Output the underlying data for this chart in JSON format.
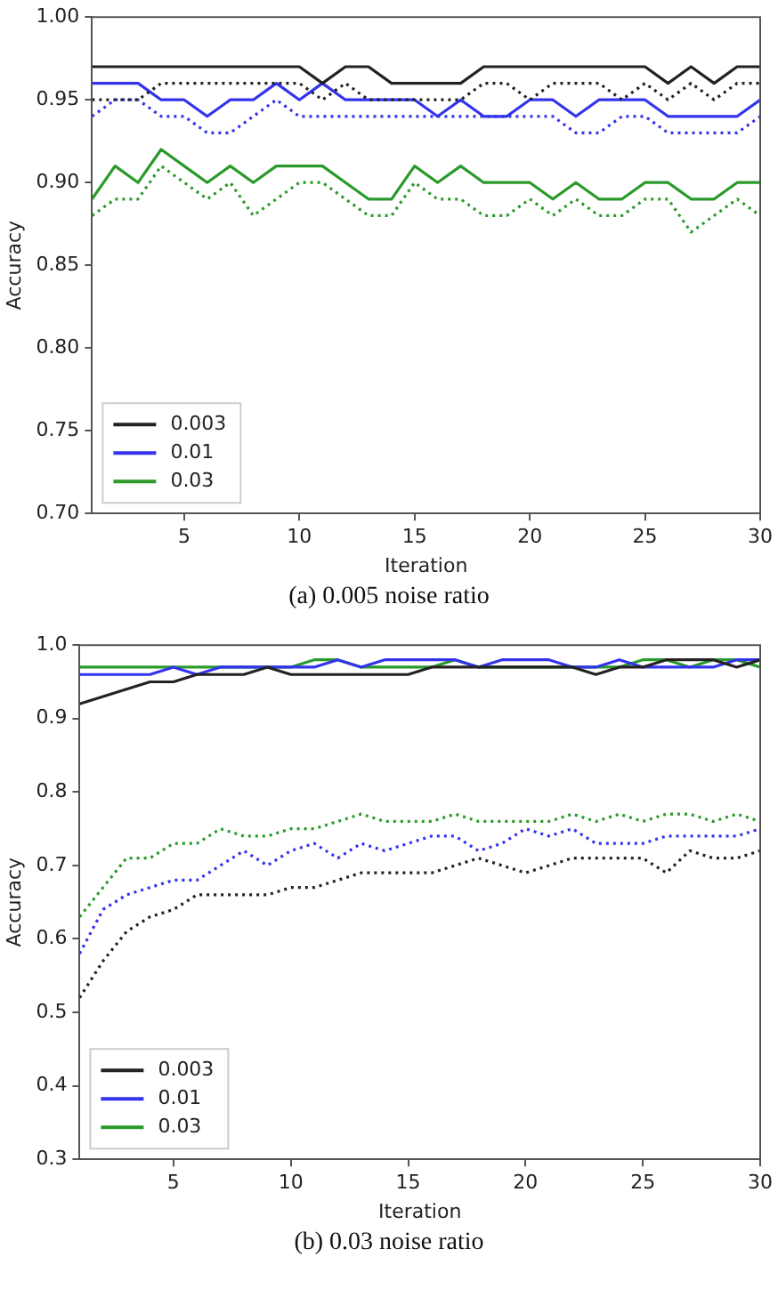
{
  "chart_data": [
    {
      "type": "line",
      "xlabel": "Iteration",
      "ylabel": "Accuracy",
      "annotations": [
        "(a) 0.005 noise ratio"
      ],
      "x": [
        1,
        2,
        3,
        4,
        5,
        6,
        7,
        8,
        9,
        10,
        11,
        12,
        13,
        14,
        15,
        16,
        17,
        18,
        19,
        20,
        21,
        22,
        23,
        24,
        25,
        26,
        27,
        28,
        29,
        30
      ],
      "xlim": [
        1,
        30
      ],
      "xticks": [
        5,
        10,
        15,
        20,
        25,
        30
      ],
      "ylim": [
        0.7,
        1.0
      ],
      "yticks": [
        {
          "value": 0.7,
          "label": "0.70"
        },
        {
          "value": 0.75,
          "label": "0.75"
        },
        {
          "value": 0.8,
          "label": "0.80"
        },
        {
          "value": 0.85,
          "label": "0.85"
        },
        {
          "value": 0.9,
          "label": "0.90"
        },
        {
          "value": 0.95,
          "label": "0.95"
        },
        {
          "value": 1.0,
          "label": "1.00"
        }
      ],
      "legend": "bottom left",
      "grid": false,
      "marker": "none",
      "series": [
        {
          "name": "0.003",
          "color": "#222222",
          "line_style": "solid",
          "values": [
            0.97,
            0.97,
            0.97,
            0.97,
            0.97,
            0.97,
            0.97,
            0.97,
            0.97,
            0.97,
            0.96,
            0.97,
            0.97,
            0.96,
            0.96,
            0.96,
            0.96,
            0.97,
            0.97,
            0.97,
            0.97,
            0.97,
            0.97,
            0.97,
            0.97,
            0.96,
            0.97,
            0.96,
            0.97,
            0.97
          ]
        },
        {
          "color": "#222222",
          "line_style": "dotted",
          "values": [
            0.95,
            0.95,
            0.95,
            0.96,
            0.96,
            0.96,
            0.96,
            0.96,
            0.96,
            0.96,
            0.95,
            0.96,
            0.95,
            0.95,
            0.95,
            0.95,
            0.95,
            0.96,
            0.96,
            0.95,
            0.96,
            0.96,
            0.96,
            0.95,
            0.96,
            0.95,
            0.96,
            0.95,
            0.96,
            0.96
          ]
        },
        {
          "name": "0.01",
          "color": "#3333ee",
          "line_style": "solid",
          "values": [
            0.96,
            0.96,
            0.96,
            0.95,
            0.95,
            0.94,
            0.95,
            0.95,
            0.96,
            0.95,
            0.96,
            0.95,
            0.95,
            0.95,
            0.95,
            0.94,
            0.95,
            0.94,
            0.94,
            0.95,
            0.95,
            0.94,
            0.95,
            0.95,
            0.95,
            0.94,
            0.94,
            0.94,
            0.94,
            0.95
          ]
        },
        {
          "color": "#3333ee",
          "line_style": "dotted",
          "values": [
            0.94,
            0.95,
            0.95,
            0.94,
            0.94,
            0.93,
            0.93,
            0.94,
            0.95,
            0.94,
            0.94,
            0.94,
            0.94,
            0.94,
            0.94,
            0.94,
            0.94,
            0.94,
            0.94,
            0.94,
            0.94,
            0.93,
            0.93,
            0.94,
            0.94,
            0.93,
            0.93,
            0.93,
            0.93,
            0.94
          ]
        },
        {
          "name": "0.03",
          "color": "#2a9a2a",
          "line_style": "solid",
          "values": [
            0.89,
            0.91,
            0.9,
            0.92,
            0.91,
            0.9,
            0.91,
            0.9,
            0.91,
            0.91,
            0.91,
            0.9,
            0.89,
            0.89,
            0.91,
            0.9,
            0.91,
            0.9,
            0.9,
            0.9,
            0.89,
            0.9,
            0.89,
            0.89,
            0.9,
            0.9,
            0.89,
            0.89,
            0.9,
            0.9
          ]
        },
        {
          "color": "#2a9a2a",
          "line_style": "dotted",
          "values": [
            0.88,
            0.89,
            0.89,
            0.91,
            0.9,
            0.89,
            0.9,
            0.88,
            0.89,
            0.9,
            0.9,
            0.89,
            0.88,
            0.88,
            0.9,
            0.89,
            0.89,
            0.88,
            0.88,
            0.89,
            0.88,
            0.89,
            0.88,
            0.88,
            0.89,
            0.89,
            0.87,
            0.88,
            0.89,
            0.88
          ]
        }
      ]
    },
    {
      "type": "line",
      "xlabel": "Iteration",
      "ylabel": "Accuracy",
      "annotations": [
        "(b) 0.03 noise ratio"
      ],
      "x": [
        1,
        2,
        3,
        4,
        5,
        6,
        7,
        8,
        9,
        10,
        11,
        12,
        13,
        14,
        15,
        16,
        17,
        18,
        19,
        20,
        21,
        22,
        23,
        24,
        25,
        26,
        27,
        28,
        29,
        30
      ],
      "xlim": [
        1,
        30
      ],
      "xticks": [
        5,
        10,
        15,
        20,
        25,
        30
      ],
      "ylim": [
        0.3,
        1.0
      ],
      "yticks": [
        0.3,
        0.4,
        0.5,
        0.6,
        0.7,
        0.8,
        0.9,
        {
          "value": 1.0,
          "label": "1.0"
        }
      ],
      "legend": "bottom left",
      "grid": false,
      "marker": "none",
      "series": [
        {
          "name": "0.003",
          "color": "#222222",
          "line_style": "solid",
          "values": [
            0.92,
            0.93,
            0.94,
            0.95,
            0.95,
            0.96,
            0.96,
            0.96,
            0.97,
            0.96,
            0.96,
            0.96,
            0.96,
            0.96,
            0.96,
            0.97,
            0.97,
            0.97,
            0.97,
            0.97,
            0.97,
            0.97,
            0.96,
            0.97,
            0.97,
            0.98,
            0.98,
            0.98,
            0.97,
            0.98
          ]
        },
        {
          "color": "#222222",
          "line_style": "dotted",
          "values": [
            0.52,
            0.57,
            0.61,
            0.63,
            0.64,
            0.66,
            0.66,
            0.66,
            0.66,
            0.67,
            0.67,
            0.68,
            0.69,
            0.69,
            0.69,
            0.69,
            0.7,
            0.71,
            0.7,
            0.69,
            0.7,
            0.71,
            0.71,
            0.71,
            0.71,
            0.69,
            0.72,
            0.71,
            0.71,
            0.72
          ]
        },
        {
          "name": "0.01",
          "color": "#3333ee",
          "line_style": "solid",
          "values": [
            0.96,
            0.96,
            0.96,
            0.96,
            0.97,
            0.96,
            0.97,
            0.97,
            0.97,
            0.97,
            0.97,
            0.98,
            0.97,
            0.98,
            0.98,
            0.98,
            0.98,
            0.97,
            0.98,
            0.98,
            0.98,
            0.97,
            0.97,
            0.98,
            0.97,
            0.97,
            0.97,
            0.97,
            0.98,
            0.98
          ]
        },
        {
          "color": "#3333ee",
          "line_style": "dotted",
          "values": [
            0.58,
            0.64,
            0.66,
            0.67,
            0.68,
            0.68,
            0.7,
            0.72,
            0.7,
            0.72,
            0.73,
            0.71,
            0.73,
            0.72,
            0.73,
            0.74,
            0.74,
            0.72,
            0.73,
            0.75,
            0.74,
            0.75,
            0.73,
            0.73,
            0.73,
            0.74,
            0.74,
            0.74,
            0.74,
            0.75
          ]
        },
        {
          "name": "0.03",
          "color": "#2a9a2a",
          "line_style": "solid",
          "values": [
            0.97,
            0.97,
            0.97,
            0.97,
            0.97,
            0.97,
            0.97,
            0.97,
            0.97,
            0.97,
            0.98,
            0.98,
            0.97,
            0.97,
            0.97,
            0.97,
            0.98,
            0.97,
            0.97,
            0.97,
            0.97,
            0.97,
            0.97,
            0.97,
            0.98,
            0.98,
            0.97,
            0.98,
            0.98,
            0.97
          ]
        },
        {
          "color": "#2a9a2a",
          "line_style": "dotted",
          "values": [
            0.63,
            0.67,
            0.71,
            0.71,
            0.73,
            0.73,
            0.75,
            0.74,
            0.74,
            0.75,
            0.75,
            0.76,
            0.77,
            0.76,
            0.76,
            0.76,
            0.77,
            0.76,
            0.76,
            0.76,
            0.76,
            0.77,
            0.76,
            0.77,
            0.76,
            0.77,
            0.77,
            0.76,
            0.77,
            0.76
          ]
        }
      ]
    }
  ]
}
